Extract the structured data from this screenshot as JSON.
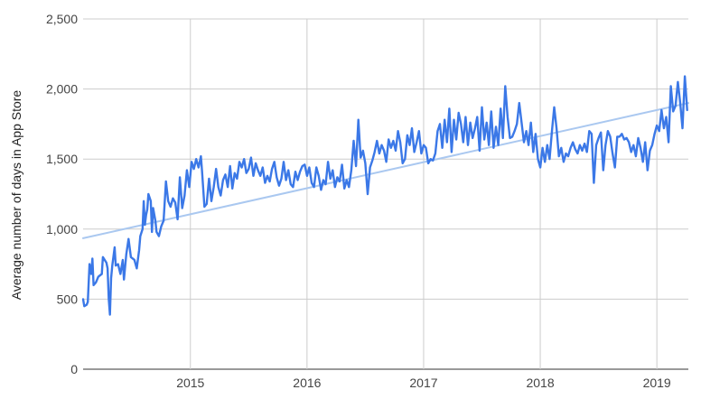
{
  "chart_data": {
    "type": "line",
    "title": "",
    "xlabel": "",
    "ylabel": "Average number of days in App Store",
    "xlim": [
      2014.08,
      2019.27
    ],
    "ylim": [
      0,
      2500
    ],
    "grid": true,
    "legend": "none",
    "x_ticks": [
      {
        "value": 2015,
        "label": "2015"
      },
      {
        "value": 2016,
        "label": "2016"
      },
      {
        "value": 2017,
        "label": "2017"
      },
      {
        "value": 2018,
        "label": "2018"
      },
      {
        "value": 2019,
        "label": "2019"
      }
    ],
    "y_ticks": [
      {
        "value": 0,
        "label": "0"
      },
      {
        "value": 500,
        "label": "500"
      },
      {
        "value": 1000,
        "label": "1,000"
      },
      {
        "value": 1500,
        "label": "1,500"
      },
      {
        "value": 2000,
        "label": "2,000"
      },
      {
        "value": 2500,
        "label": "2,500"
      }
    ],
    "series": [
      {
        "color": "#3b78e7",
        "points": [
          [
            2014.08,
            500
          ],
          [
            2014.09,
            450
          ],
          [
            2014.11,
            460
          ],
          [
            2014.12,
            480
          ],
          [
            2014.135,
            750
          ],
          [
            2014.15,
            680
          ],
          [
            2014.16,
            790
          ],
          [
            2014.17,
            600
          ],
          [
            2014.19,
            620
          ],
          [
            2014.21,
            660
          ],
          [
            2014.24,
            680
          ],
          [
            2014.25,
            800
          ],
          [
            2014.28,
            760
          ],
          [
            2014.29,
            720
          ],
          [
            2014.3,
            500
          ],
          [
            2014.31,
            390
          ],
          [
            2014.32,
            650
          ],
          [
            2014.33,
            740
          ],
          [
            2014.35,
            870
          ],
          [
            2014.36,
            740
          ],
          [
            2014.38,
            750
          ],
          [
            2014.4,
            680
          ],
          [
            2014.42,
            780
          ],
          [
            2014.43,
            640
          ],
          [
            2014.45,
            820
          ],
          [
            2014.47,
            930
          ],
          [
            2014.49,
            800
          ],
          [
            2014.52,
            780
          ],
          [
            2014.54,
            720
          ],
          [
            2014.56,
            850
          ],
          [
            2014.57,
            950
          ],
          [
            2014.59,
            1000
          ],
          [
            2014.6,
            1200
          ],
          [
            2014.61,
            1030
          ],
          [
            2014.62,
            1100
          ],
          [
            2014.63,
            1140
          ],
          [
            2014.64,
            1250
          ],
          [
            2014.66,
            1200
          ],
          [
            2014.67,
            980
          ],
          [
            2014.68,
            1150
          ],
          [
            2014.7,
            1060
          ],
          [
            2014.71,
            980
          ],
          [
            2014.73,
            950
          ],
          [
            2014.75,
            1020
          ],
          [
            2014.77,
            1060
          ],
          [
            2014.79,
            1340
          ],
          [
            2014.81,
            1200
          ],
          [
            2014.83,
            1160
          ],
          [
            2014.85,
            1220
          ],
          [
            2014.87,
            1190
          ],
          [
            2014.89,
            1070
          ],
          [
            2014.91,
            1370
          ],
          [
            2014.93,
            1150
          ],
          [
            2014.95,
            1240
          ],
          [
            2014.97,
            1420
          ],
          [
            2014.99,
            1300
          ],
          [
            2015.01,
            1480
          ],
          [
            2015.03,
            1430
          ],
          [
            2015.05,
            1500
          ],
          [
            2015.07,
            1440
          ],
          [
            2015.09,
            1520
          ],
          [
            2015.1,
            1410
          ],
          [
            2015.12,
            1160
          ],
          [
            2015.14,
            1180
          ],
          [
            2015.16,
            1360
          ],
          [
            2015.18,
            1200
          ],
          [
            2015.2,
            1300
          ],
          [
            2015.22,
            1430
          ],
          [
            2015.24,
            1300
          ],
          [
            2015.26,
            1240
          ],
          [
            2015.28,
            1350
          ],
          [
            2015.3,
            1390
          ],
          [
            2015.32,
            1300
          ],
          [
            2015.34,
            1450
          ],
          [
            2015.36,
            1290
          ],
          [
            2015.38,
            1400
          ],
          [
            2015.4,
            1360
          ],
          [
            2015.42,
            1480
          ],
          [
            2015.44,
            1440
          ],
          [
            2015.46,
            1500
          ],
          [
            2015.48,
            1400
          ],
          [
            2015.5,
            1430
          ],
          [
            2015.52,
            1510
          ],
          [
            2015.54,
            1380
          ],
          [
            2015.56,
            1470
          ],
          [
            2015.58,
            1420
          ],
          [
            2015.6,
            1380
          ],
          [
            2015.62,
            1440
          ],
          [
            2015.64,
            1330
          ],
          [
            2015.66,
            1380
          ],
          [
            2015.68,
            1340
          ],
          [
            2015.7,
            1430
          ],
          [
            2015.72,
            1480
          ],
          [
            2015.74,
            1370
          ],
          [
            2015.76,
            1310
          ],
          [
            2015.78,
            1360
          ],
          [
            2015.8,
            1480
          ],
          [
            2015.82,
            1350
          ],
          [
            2015.84,
            1420
          ],
          [
            2015.86,
            1320
          ],
          [
            2015.88,
            1300
          ],
          [
            2015.9,
            1410
          ],
          [
            2015.92,
            1350
          ],
          [
            2015.94,
            1410
          ],
          [
            2015.96,
            1450
          ],
          [
            2015.98,
            1460
          ],
          [
            2016.0,
            1380
          ],
          [
            2016.02,
            1440
          ],
          [
            2016.04,
            1330
          ],
          [
            2016.06,
            1300
          ],
          [
            2016.08,
            1440
          ],
          [
            2016.1,
            1380
          ],
          [
            2016.12,
            1280
          ],
          [
            2016.14,
            1350
          ],
          [
            2016.16,
            1320
          ],
          [
            2016.18,
            1480
          ],
          [
            2016.2,
            1360
          ],
          [
            2016.22,
            1420
          ],
          [
            2016.24,
            1300
          ],
          [
            2016.26,
            1370
          ],
          [
            2016.28,
            1340
          ],
          [
            2016.3,
            1460
          ],
          [
            2016.32,
            1290
          ],
          [
            2016.34,
            1350
          ],
          [
            2016.36,
            1300
          ],
          [
            2016.38,
            1420
          ],
          [
            2016.4,
            1630
          ],
          [
            2016.42,
            1450
          ],
          [
            2016.44,
            1780
          ],
          [
            2016.46,
            1510
          ],
          [
            2016.48,
            1560
          ],
          [
            2016.5,
            1470
          ],
          [
            2016.52,
            1250
          ],
          [
            2016.54,
            1440
          ],
          [
            2016.56,
            1490
          ],
          [
            2016.58,
            1550
          ],
          [
            2016.6,
            1630
          ],
          [
            2016.62,
            1540
          ],
          [
            2016.64,
            1600
          ],
          [
            2016.66,
            1560
          ],
          [
            2016.68,
            1480
          ],
          [
            2016.7,
            1640
          ],
          [
            2016.72,
            1580
          ],
          [
            2016.74,
            1630
          ],
          [
            2016.76,
            1560
          ],
          [
            2016.78,
            1700
          ],
          [
            2016.8,
            1620
          ],
          [
            2016.82,
            1470
          ],
          [
            2016.84,
            1500
          ],
          [
            2016.86,
            1670
          ],
          [
            2016.88,
            1600
          ],
          [
            2016.9,
            1720
          ],
          [
            2016.92,
            1550
          ],
          [
            2016.94,
            1620
          ],
          [
            2016.96,
            1700
          ],
          [
            2016.98,
            1540
          ],
          [
            2017.0,
            1600
          ],
          [
            2017.02,
            1580
          ],
          [
            2017.04,
            1470
          ],
          [
            2017.06,
            1500
          ],
          [
            2017.08,
            1490
          ],
          [
            2017.1,
            1540
          ],
          [
            2017.12,
            1700
          ],
          [
            2017.14,
            1750
          ],
          [
            2017.16,
            1580
          ],
          [
            2017.18,
            1780
          ],
          [
            2017.2,
            1620
          ],
          [
            2017.22,
            1860
          ],
          [
            2017.24,
            1550
          ],
          [
            2017.26,
            1780
          ],
          [
            2017.28,
            1640
          ],
          [
            2017.3,
            1830
          ],
          [
            2017.32,
            1750
          ],
          [
            2017.34,
            1620
          ],
          [
            2017.36,
            1800
          ],
          [
            2017.38,
            1600
          ],
          [
            2017.4,
            1760
          ],
          [
            2017.42,
            1650
          ],
          [
            2017.44,
            1720
          ],
          [
            2017.46,
            1800
          ],
          [
            2017.48,
            1560
          ],
          [
            2017.5,
            1870
          ],
          [
            2017.52,
            1640
          ],
          [
            2017.54,
            1760
          ],
          [
            2017.56,
            1600
          ],
          [
            2017.58,
            1840
          ],
          [
            2017.6,
            1580
          ],
          [
            2017.62,
            1730
          ],
          [
            2017.64,
            1600
          ],
          [
            2017.66,
            1860
          ],
          [
            2017.68,
            1650
          ],
          [
            2017.7,
            2020
          ],
          [
            2017.72,
            1800
          ],
          [
            2017.74,
            1650
          ],
          [
            2017.76,
            1660
          ],
          [
            2017.78,
            1700
          ],
          [
            2017.8,
            1750
          ],
          [
            2017.82,
            1900
          ],
          [
            2017.84,
            1760
          ],
          [
            2017.86,
            1620
          ],
          [
            2017.88,
            1700
          ],
          [
            2017.9,
            1600
          ],
          [
            2017.92,
            1760
          ],
          [
            2017.94,
            1550
          ],
          [
            2017.96,
            1680
          ],
          [
            2017.98,
            1500
          ],
          [
            2018.0,
            1440
          ],
          [
            2018.02,
            1580
          ],
          [
            2018.04,
            1480
          ],
          [
            2018.06,
            1600
          ],
          [
            2018.08,
            1500
          ],
          [
            2018.1,
            1700
          ],
          [
            2018.12,
            1870
          ],
          [
            2018.14,
            1720
          ],
          [
            2018.16,
            1520
          ],
          [
            2018.18,
            1580
          ],
          [
            2018.2,
            1480
          ],
          [
            2018.22,
            1540
          ],
          [
            2018.24,
            1520
          ],
          [
            2018.26,
            1580
          ],
          [
            2018.28,
            1620
          ],
          [
            2018.3,
            1570
          ],
          [
            2018.32,
            1540
          ],
          [
            2018.34,
            1600
          ],
          [
            2018.36,
            1560
          ],
          [
            2018.38,
            1610
          ],
          [
            2018.4,
            1550
          ],
          [
            2018.42,
            1700
          ],
          [
            2018.44,
            1680
          ],
          [
            2018.46,
            1330
          ],
          [
            2018.48,
            1600
          ],
          [
            2018.5,
            1650
          ],
          [
            2018.52,
            1690
          ],
          [
            2018.54,
            1420
          ],
          [
            2018.56,
            1600
          ],
          [
            2018.58,
            1700
          ],
          [
            2018.6,
            1660
          ],
          [
            2018.62,
            1540
          ],
          [
            2018.64,
            1440
          ],
          [
            2018.66,
            1660
          ],
          [
            2018.68,
            1660
          ],
          [
            2018.7,
            1680
          ],
          [
            2018.72,
            1640
          ],
          [
            2018.74,
            1650
          ],
          [
            2018.76,
            1620
          ],
          [
            2018.78,
            1550
          ],
          [
            2018.8,
            1600
          ],
          [
            2018.82,
            1520
          ],
          [
            2018.84,
            1650
          ],
          [
            2018.86,
            1580
          ],
          [
            2018.88,
            1480
          ],
          [
            2018.9,
            1620
          ],
          [
            2018.92,
            1420
          ],
          [
            2018.94,
            1560
          ],
          [
            2018.96,
            1600
          ],
          [
            2018.98,
            1680
          ],
          [
            2019.0,
            1740
          ],
          [
            2019.02,
            1700
          ],
          [
            2019.04,
            1850
          ],
          [
            2019.06,
            1720
          ],
          [
            2019.08,
            1800
          ],
          [
            2019.1,
            1620
          ],
          [
            2019.12,
            2020
          ],
          [
            2019.14,
            1840
          ],
          [
            2019.16,
            1880
          ],
          [
            2019.18,
            2050
          ],
          [
            2019.2,
            1900
          ],
          [
            2019.22,
            1720
          ],
          [
            2019.24,
            2090
          ],
          [
            2019.26,
            1850
          ]
        ]
      },
      {
        "color": "#aac8f0",
        "trendline": true,
        "points": [
          [
            2014.08,
            935
          ],
          [
            2019.27,
            1900
          ]
        ]
      }
    ]
  }
}
